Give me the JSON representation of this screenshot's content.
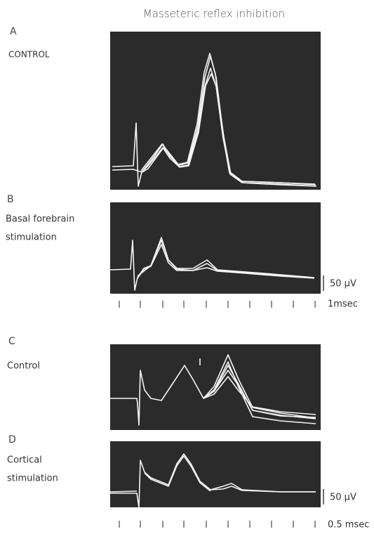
{
  "title": "Masseteric reflex inhibition",
  "panels": [
    {
      "letter": "A",
      "label": [
        "CONTROL"
      ]
    },
    {
      "letter": "B",
      "label": [
        "Basal forebrain",
        "stimulation"
      ]
    },
    {
      "letter": "C",
      "label": [
        "Control"
      ]
    },
    {
      "letter": "D",
      "label": [
        "Cortical",
        "stimulation"
      ]
    }
  ],
  "scale_bars": [
    {
      "amplitude": "50 μV",
      "time": "1msec"
    },
    {
      "amplitude": "50 μV",
      "time": "0.5 msec"
    }
  ]
}
